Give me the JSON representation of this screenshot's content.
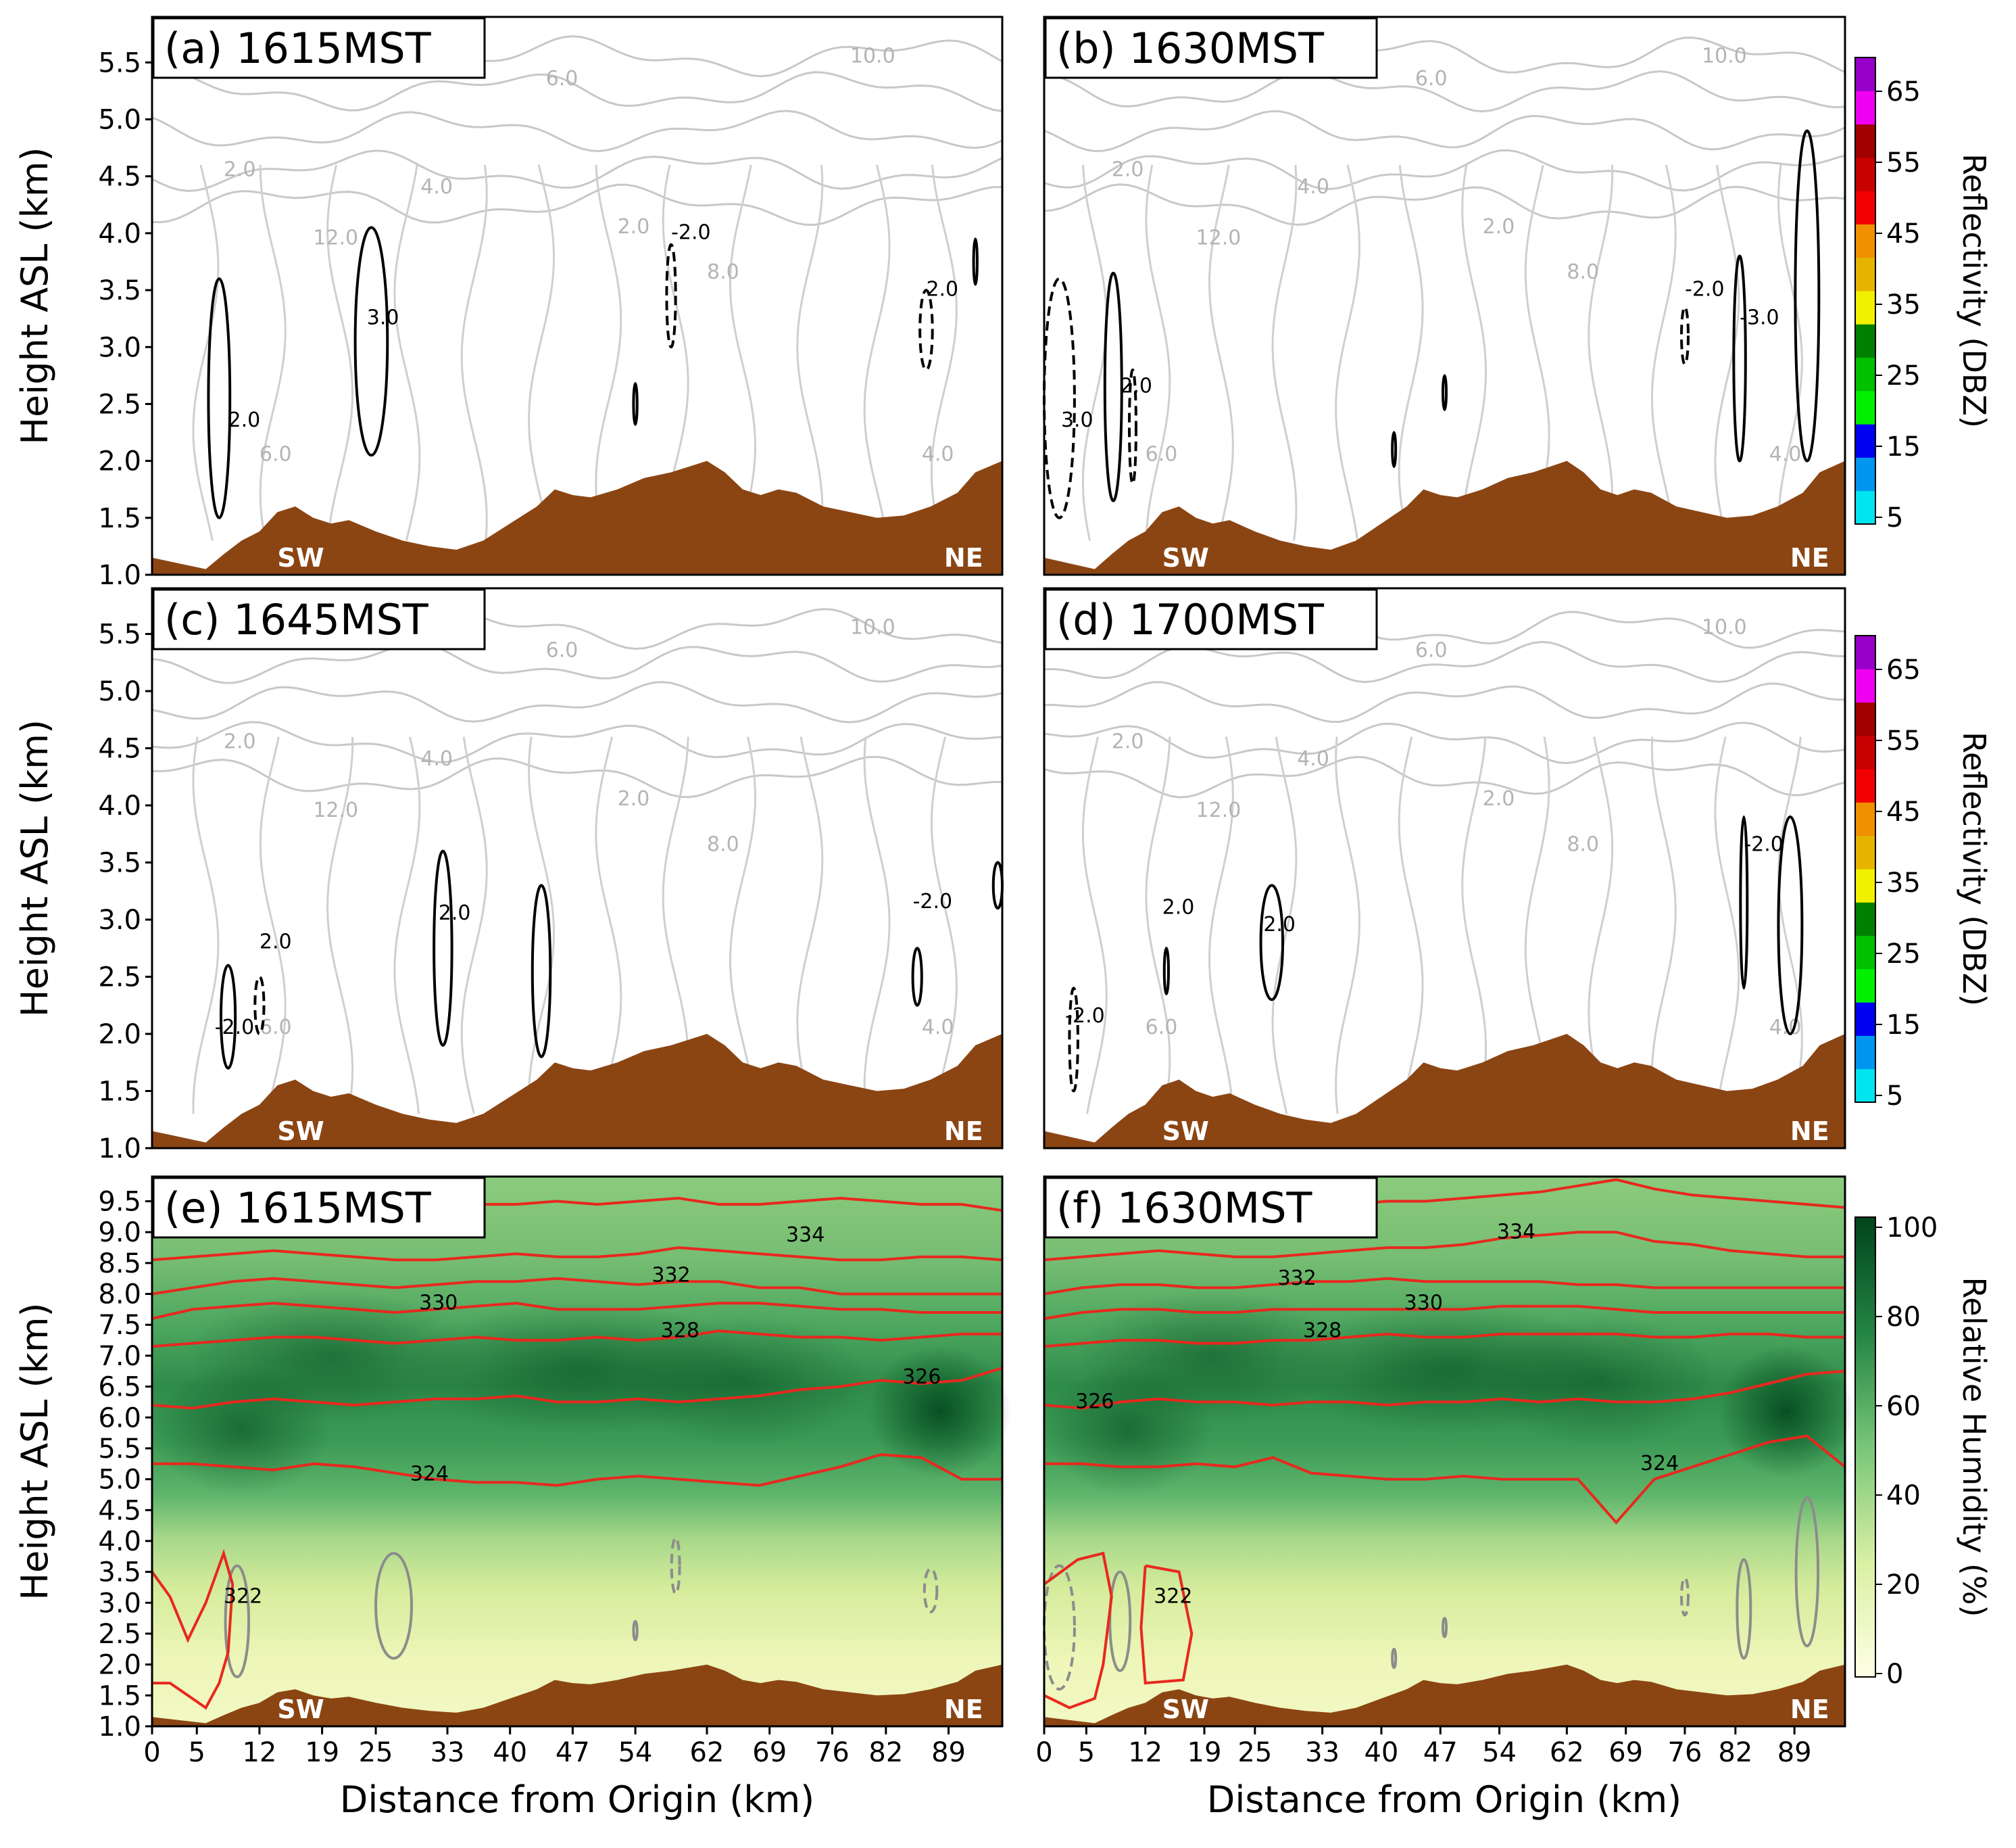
{
  "figure": {
    "xlabel": "Distance from Origin (km)",
    "ylabel": "Height ASL (km)"
  },
  "colorbars": {
    "reflectivity": {
      "title": "Reflectivity (DBZ)",
      "ticks": [
        "5",
        "15",
        "25",
        "35",
        "45",
        "55",
        "65"
      ],
      "colors": [
        "#00e5f0",
        "#0096f0",
        "#0000f0",
        "#00f000",
        "#00c000",
        "#008000",
        "#f0f000",
        "#e6b400",
        "#f09000",
        "#f00000",
        "#c80000",
        "#a00000",
        "#f000f0",
        "#9600c8"
      ]
    },
    "humidity": {
      "title": "Relative Humidity (%)",
      "ticks": [
        "0",
        "20",
        "40",
        "60",
        "80",
        "100"
      ],
      "colors": [
        "#ffffe5",
        "#d9f0a3",
        "#78c679",
        "#238443",
        "#00441b"
      ]
    }
  },
  "chart_data": [
    {
      "type": "heatmap",
      "panel": "a",
      "title": "(a) 1615MST",
      "x_ticks": [
        "0",
        "5",
        "12",
        "19",
        "25",
        "33",
        "40",
        "47",
        "54",
        "62",
        "69",
        "76",
        "82",
        "89"
      ],
      "y_ticks": [
        "1.0",
        "1.5",
        "2.0",
        "2.5",
        "3.0",
        "3.5",
        "4.0",
        "4.5",
        "5.0",
        "5.5"
      ],
      "ylim": [
        1.0,
        5.9
      ],
      "xlim": [
        0,
        95
      ],
      "terrain_km": [
        [
          0,
          1.15
        ],
        [
          3,
          1.1
        ],
        [
          6,
          1.05
        ],
        [
          8,
          1.18
        ],
        [
          10,
          1.3
        ],
        [
          12,
          1.38
        ],
        [
          14,
          1.55
        ],
        [
          16,
          1.6
        ],
        [
          18,
          1.5
        ],
        [
          20,
          1.45
        ],
        [
          22,
          1.48
        ],
        [
          25,
          1.38
        ],
        [
          28,
          1.3
        ],
        [
          31,
          1.25
        ],
        [
          34,
          1.22
        ],
        [
          37,
          1.3
        ],
        [
          40,
          1.45
        ],
        [
          43,
          1.6
        ],
        [
          45,
          1.75
        ],
        [
          47,
          1.7
        ],
        [
          49,
          1.68
        ],
        [
          52,
          1.75
        ],
        [
          55,
          1.85
        ],
        [
          58,
          1.9
        ],
        [
          60,
          1.95
        ],
        [
          62,
          2.0
        ],
        [
          64,
          1.9
        ],
        [
          66,
          1.75
        ],
        [
          68,
          1.7
        ],
        [
          70,
          1.75
        ],
        [
          72,
          1.72
        ],
        [
          75,
          1.6
        ],
        [
          78,
          1.55
        ],
        [
          81,
          1.5
        ],
        [
          84,
          1.52
        ],
        [
          87,
          1.6
        ],
        [
          90,
          1.72
        ],
        [
          92,
          1.9
        ],
        [
          95,
          2.0
        ]
      ],
      "direction_labels": [
        "SW",
        "NE"
      ],
      "reflectivity_contours_gray": [
        "2.0",
        "4.0",
        "6.0",
        "8.0",
        "10.0",
        "12.0"
      ],
      "black_contour_labels": [
        "2.0",
        "3.0",
        "-2.0"
      ]
    },
    {
      "type": "heatmap",
      "panel": "b",
      "title": "(b) 1630MST",
      "x_ticks": [
        "0",
        "5",
        "12",
        "19",
        "25",
        "33",
        "40",
        "47",
        "54",
        "62",
        "69",
        "76",
        "82",
        "89"
      ],
      "ylim": [
        1.0,
        5.9
      ],
      "direction_labels": [
        "SW",
        "NE"
      ],
      "reflectivity_contours_gray": [
        "2.0",
        "4.0",
        "6.0",
        "8.0",
        "10.0",
        "12.0"
      ],
      "black_contour_labels": [
        "2.0",
        "3.0",
        "-2.0",
        "-3.0"
      ]
    },
    {
      "type": "heatmap",
      "panel": "c",
      "title": "(c) 1645MST",
      "ylim": [
        1.0,
        5.9
      ],
      "y_ticks": [
        "1.0",
        "1.5",
        "2.0",
        "2.5",
        "3.0",
        "3.5",
        "4.0",
        "4.5",
        "5.0",
        "5.5"
      ],
      "direction_labels": [
        "SW",
        "NE"
      ],
      "reflectivity_contours_gray": [
        "2.0",
        "4.0",
        "6.0",
        "8.0",
        "10.0",
        "12.0"
      ],
      "black_contour_labels": [
        "2.0",
        "-2.0"
      ]
    },
    {
      "type": "heatmap",
      "panel": "d",
      "title": "(d) 1700MST",
      "ylim": [
        1.0,
        5.9
      ],
      "direction_labels": [
        "SW",
        "NE"
      ],
      "reflectivity_contours_gray": [
        "2.0",
        "4.0",
        "6.0",
        "8.0",
        "10.0",
        "12.0"
      ],
      "black_contour_labels": [
        "2.0",
        "-2.0"
      ]
    },
    {
      "type": "heatmap",
      "panel": "e",
      "title": "(e) 1615MST",
      "x_ticks": [
        "0",
        "5",
        "12",
        "19",
        "25",
        "33",
        "40",
        "47",
        "54",
        "62",
        "69",
        "76",
        "82",
        "89"
      ],
      "y_ticks": [
        "1.0",
        "1.5",
        "2.0",
        "2.5",
        "3.0",
        "3.5",
        "4.0",
        "4.5",
        "5.0",
        "5.5",
        "6.0",
        "6.5",
        "7.0",
        "7.5",
        "8.0",
        "8.5",
        "9.0",
        "9.5"
      ],
      "ylim": [
        1.0,
        9.9
      ],
      "direction_labels": [
        "SW",
        "NE"
      ],
      "theta_contours": [
        {
          "label": "324",
          "y": [
            5.25,
            5.25,
            5.2,
            5.15,
            5.25,
            5.2,
            5.1,
            5.0,
            4.95,
            4.95,
            4.9,
            5.0,
            5.05,
            5.0,
            4.95,
            4.9,
            5.05,
            5.2,
            5.4,
            5.35,
            5.0,
            5.0
          ],
          "label_x": 31,
          "label_y": 4.98
        },
        {
          "label": "326",
          "y": [
            6.2,
            6.15,
            6.25,
            6.3,
            6.25,
            6.2,
            6.25,
            6.3,
            6.3,
            6.35,
            6.25,
            6.25,
            6.3,
            6.25,
            6.3,
            6.35,
            6.45,
            6.5,
            6.6,
            6.55,
            6.6,
            6.8
          ],
          "label_x": 86,
          "label_y": 6.55
        },
        {
          "label": "328",
          "y": [
            7.15,
            7.2,
            7.25,
            7.3,
            7.3,
            7.25,
            7.2,
            7.25,
            7.3,
            7.25,
            7.25,
            7.3,
            7.25,
            7.3,
            7.4,
            7.35,
            7.3,
            7.3,
            7.25,
            7.3,
            7.35,
            7.35
          ],
          "label_x": 59,
          "label_y": 7.3
        },
        {
          "label": "330",
          "y": [
            7.6,
            7.75,
            7.8,
            7.85,
            7.8,
            7.75,
            7.7,
            7.75,
            7.8,
            7.85,
            7.75,
            7.75,
            7.75,
            7.8,
            7.85,
            7.85,
            7.8,
            7.75,
            7.75,
            7.7,
            7.7,
            7.7
          ],
          "label_x": 32,
          "label_y": 7.75
        },
        {
          "label": "332",
          "y": [
            8.0,
            8.1,
            8.2,
            8.25,
            8.2,
            8.15,
            8.1,
            8.15,
            8.2,
            8.2,
            8.25,
            8.2,
            8.15,
            8.2,
            8.2,
            8.1,
            8.1,
            8.0,
            8.0,
            8.0,
            8.0,
            8.0
          ],
          "label_x": 58,
          "label_y": 8.2
        },
        {
          "label": "334",
          "y": [
            8.55,
            8.6,
            8.65,
            8.7,
            8.65,
            8.6,
            8.55,
            8.55,
            8.6,
            8.65,
            8.6,
            8.6,
            8.65,
            8.75,
            8.7,
            8.65,
            8.6,
            8.55,
            8.55,
            8.6,
            8.6,
            8.55
          ],
          "label_x": 73,
          "label_y": 8.85
        },
        {
          "label": "",
          "y": [
            null,
            null,
            null,
            null,
            null,
            null,
            null,
            9.4,
            9.45,
            9.45,
            9.5,
            9.45,
            9.5,
            9.55,
            9.45,
            9.45,
            9.5,
            9.55,
            9.5,
            9.45,
            9.45,
            9.35
          ]
        }
      ],
      "low_theta_label": "322"
    },
    {
      "type": "heatmap",
      "panel": "f",
      "title": "(f) 1630MST",
      "ylim": [
        1.0,
        9.9
      ],
      "direction_labels": [
        "SW",
        "NE"
      ],
      "theta_contours": [
        {
          "label": "324",
          "y": [
            5.25,
            5.25,
            5.2,
            5.2,
            5.25,
            5.2,
            5.35,
            5.1,
            5.05,
            5.0,
            5.0,
            5.05,
            5.0,
            5.0,
            5.0,
            4.3,
            5.0,
            5.2,
            5.4,
            5.6,
            5.7,
            5.2
          ],
          "label_x": 73,
          "label_y": 5.15
        },
        {
          "label": "326",
          "y": [
            6.2,
            6.15,
            6.25,
            6.3,
            6.25,
            6.25,
            6.2,
            6.25,
            6.25,
            6.2,
            6.25,
            6.25,
            6.3,
            6.25,
            6.3,
            6.25,
            6.25,
            6.3,
            6.4,
            6.55,
            6.7,
            6.75
          ],
          "label_x": 6,
          "label_y": 6.15
        },
        {
          "label": "328",
          "y": [
            7.15,
            7.2,
            7.25,
            7.25,
            7.2,
            7.2,
            7.25,
            7.25,
            7.3,
            7.35,
            7.3,
            7.3,
            7.35,
            7.35,
            7.35,
            7.35,
            7.3,
            7.3,
            7.35,
            7.35,
            7.3,
            7.3
          ],
          "label_x": 33,
          "label_y": 7.3
        },
        {
          "label": "330",
          "y": [
            7.6,
            7.7,
            7.75,
            7.75,
            7.7,
            7.7,
            7.75,
            7.75,
            7.75,
            7.75,
            7.75,
            7.75,
            7.8,
            7.8,
            7.8,
            7.75,
            7.7,
            7.7,
            7.7,
            7.7,
            7.7,
            7.7
          ],
          "label_x": 45,
          "label_y": 7.75
        },
        {
          "label": "332",
          "y": [
            8.0,
            8.1,
            8.15,
            8.15,
            8.1,
            8.1,
            8.15,
            8.2,
            8.2,
            8.25,
            8.2,
            8.2,
            8.2,
            8.2,
            8.15,
            8.15,
            8.1,
            8.1,
            8.1,
            8.1,
            8.1,
            8.1
          ],
          "label_x": 30,
          "label_y": 8.15
        },
        {
          "label": "334",
          "y": [
            8.55,
            8.6,
            8.65,
            8.7,
            8.65,
            8.6,
            8.6,
            8.65,
            8.7,
            8.75,
            8.75,
            8.8,
            8.9,
            8.95,
            9.0,
            9.0,
            8.85,
            8.8,
            8.7,
            8.65,
            8.6,
            8.6
          ],
          "label_x": 56,
          "label_y": 8.9
        },
        {
          "label": "",
          "y": [
            null,
            null,
            null,
            null,
            null,
            null,
            null,
            9.4,
            9.45,
            9.5,
            9.5,
            9.55,
            9.6,
            9.65,
            9.75,
            9.85,
            9.7,
            9.6,
            9.55,
            9.5,
            9.45,
            9.4
          ]
        }
      ],
      "low_theta_label": "322"
    }
  ]
}
